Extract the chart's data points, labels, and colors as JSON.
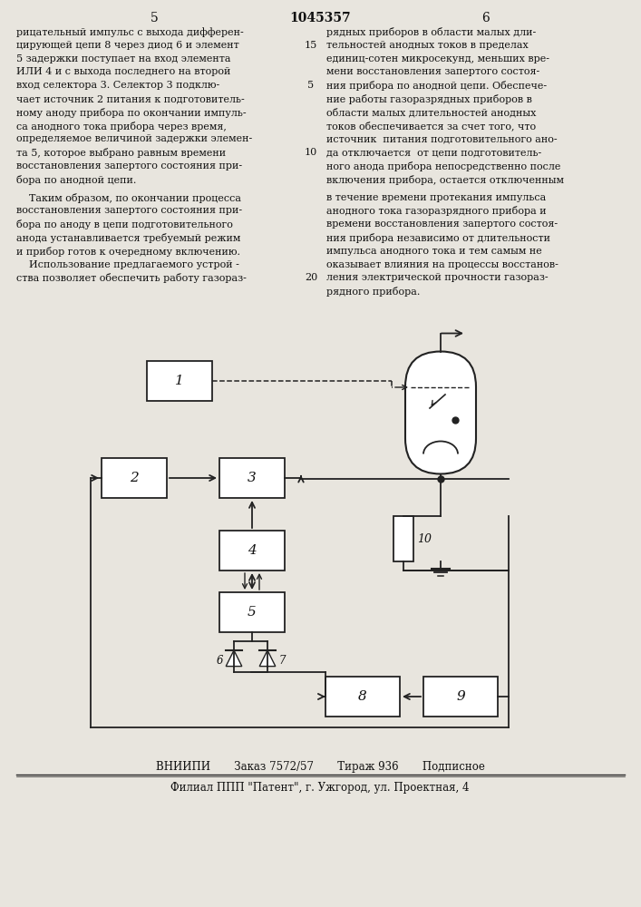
{
  "page_num_left": "5",
  "page_num_center": "1045357",
  "page_num_right": "6",
  "left_col_lines": [
    "рицательный импульс с выхода дифферен-",
    "цирующей цепи 8 через диод 6 и элемент",
    "5 задержки поступает на вход элемента",
    "ИЛИ 4 и с выхода последнего на второй",
    "вход селектора 3. Селектор 3 подклю-",
    "чает источник 2 питания к подготовитель-",
    "ному аноду прибора по окончании импуль-",
    "са анодного тока прибора через время,",
    "определяемое величиной задержки элемен-",
    "та 5, которое выбрано равным времени",
    "восстановления запертого состояния при-",
    "бора по анодной цепи."
  ],
  "right_col_lines": [
    "рядных приборов в области малых дли-",
    "тельностей анодных токов в пределах",
    "единиц-сотен микросекунд, меньших вре-",
    "мени восстановления запертого состоя-",
    "ния прибора по анодной цепи. Обеспече-",
    "ние работы газоразрядных приборов в",
    "области малых длительностей анодных",
    "токов обеспечивается за счет того, что",
    "источник  питания подготовительного ано-",
    "да отключается  от цепи подготовитель-",
    "ного анода прибора непосредственно после",
    "включения прибора, остается отключенным"
  ],
  "left_col2_lines": [
    "    Таким образом, по окончании процесса",
    "восстановления запертого состояния при-",
    "бора по аноду в цепи подготовительного",
    "анода устанавливается требуемый режим",
    "и прибор готов к очередному включению.",
    "    Использование предлагаемого устрой -",
    "ства позволяет обеспечить работу газораз-"
  ],
  "right_col2_lines": [
    "в течение времени протекания импульса",
    "анодного тока газоразрядного прибора и",
    "времени восстановления запертого состоя-",
    "ния прибора независимо от длительности",
    "импульса анодного тока и тем самым не",
    "оказывает влияния на процессы восстанов-",
    "ления электрической прочности газораз-",
    "рядного прибора."
  ],
  "mid_nums_1": {
    "4": "5",
    "9": "10"
  },
  "mid_nums_2": {
    "6": "20"
  },
  "right_nums_1": {
    "1": "15"
  },
  "bottom_line1": "ВНИИПИ       Заказ 7572/57       Тираж 936       Подписное",
  "bottom_line2": "Филиал ППП \"Патент\", г. Ужгород, ул. Проектная, 4",
  "bg_color": "#e8e5de",
  "text_color": "#111111",
  "line_color": "#222222"
}
